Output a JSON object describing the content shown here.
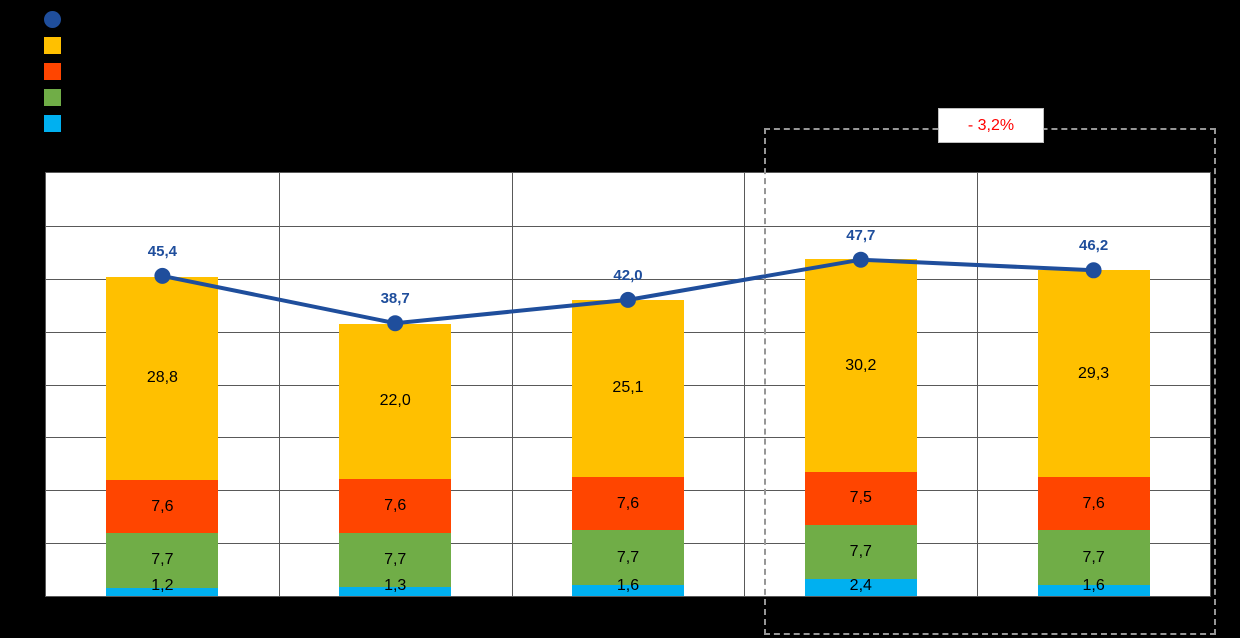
{
  "page": {
    "background": "#000000",
    "plot_background": "#FFFFFF"
  },
  "legend": {
    "position": "top-left",
    "items": [
      {
        "name": "total-line",
        "marker": "circle",
        "color": "#1F4E9C"
      },
      {
        "name": "series-amber",
        "marker": "square",
        "color": "#FFC000"
      },
      {
        "name": "series-orange-red",
        "marker": "square",
        "color": "#FF4500"
      },
      {
        "name": "series-green",
        "marker": "square",
        "color": "#70AD47"
      },
      {
        "name": "series-light-blue",
        "marker": "square",
        "color": "#00B0F0"
      }
    ]
  },
  "annotation": {
    "text": "- 3,2%",
    "text_color": "#FF0000",
    "box_border": "#BFBFBF",
    "box_fill": "#FFFFFF"
  },
  "highlight": {
    "style": "dashed",
    "color": "#969696",
    "covers_categories": [
      4,
      5
    ]
  },
  "chart_data": {
    "type": "bar",
    "subtype": "stacked-bars-with-total-line",
    "categories": [
      "",
      "",
      "",
      "",
      ""
    ],
    "series": [
      {
        "name": "light-blue",
        "color": "#00B0F0",
        "values": [
          1.2,
          1.3,
          1.6,
          2.4,
          1.6
        ],
        "labels": [
          "1,2",
          "1,3",
          "1,6",
          "2,4",
          "1,6"
        ]
      },
      {
        "name": "green",
        "color": "#70AD47",
        "values": [
          7.7,
          7.7,
          7.7,
          7.7,
          7.7
        ],
        "labels": [
          "7,7",
          "7,7",
          "7,7",
          "7,7",
          "7,7"
        ]
      },
      {
        "name": "orange-red",
        "color": "#FF4500",
        "values": [
          7.6,
          7.6,
          7.6,
          7.5,
          7.6
        ],
        "labels": [
          "7,6",
          "7,6",
          "7,6",
          "7,5",
          "7,6"
        ]
      },
      {
        "name": "amber",
        "color": "#FFC000",
        "values": [
          28.8,
          22.0,
          25.1,
          30.2,
          29.3
        ],
        "labels": [
          "28,8",
          "22,0",
          "25,1",
          "30,2",
          "29,3"
        ]
      }
    ],
    "line": {
      "name": "total",
      "color": "#1F4E9C",
      "values": [
        45.4,
        38.7,
        42.0,
        47.7,
        46.2
      ],
      "labels": [
        "45,4",
        "38,7",
        "42,0",
        "47,7",
        "46,2"
      ]
    },
    "ylim": [
      0,
      60
    ],
    "grid": {
      "h_rows": 8,
      "v_cols": 5,
      "color": "#595959",
      "on": true
    },
    "label_color": "#000000",
    "legend_position": "top-left",
    "title": "",
    "xlabel": "",
    "ylabel": ""
  }
}
